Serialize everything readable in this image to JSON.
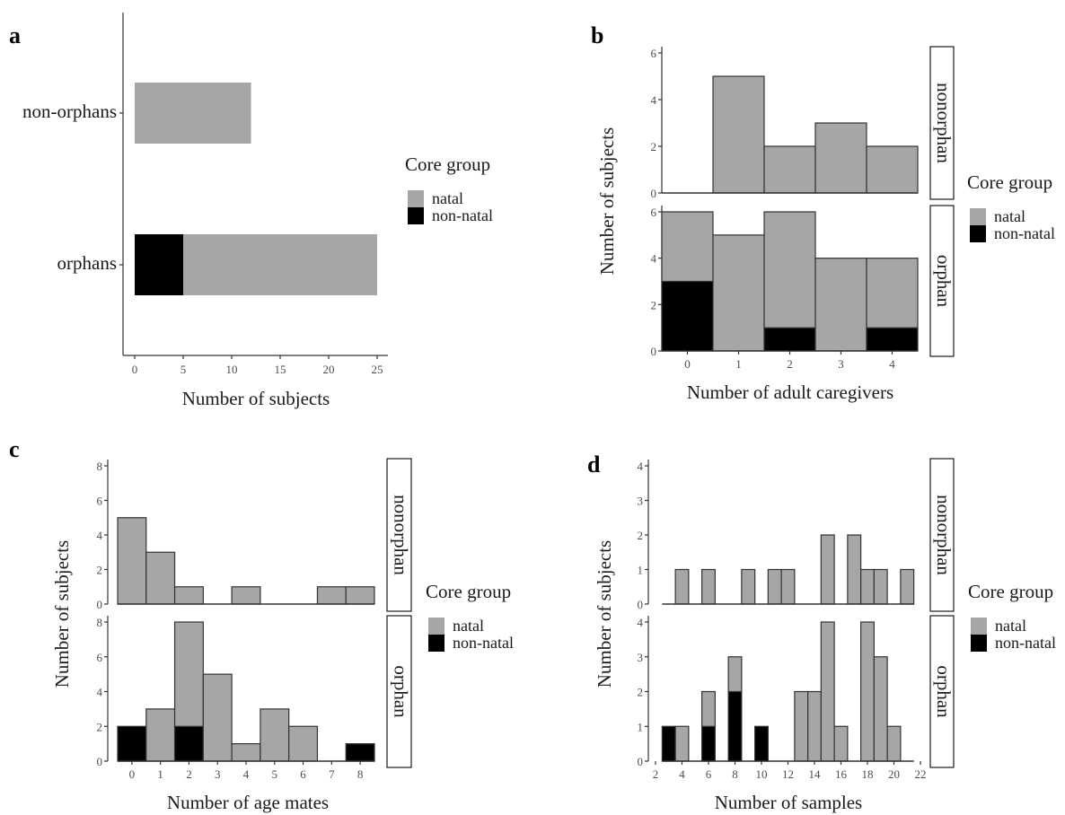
{
  "chart_data": [
    {
      "panel_label": "a",
      "type": "bar",
      "orientation": "horizontal",
      "stacked": true,
      "categories": [
        "non-orphans",
        "orphans"
      ],
      "series": [
        {
          "name": "natal",
          "color": "#a6a6a6",
          "values": [
            12,
            20
          ]
        },
        {
          "name": "non-natal",
          "color": "#000000",
          "values": [
            0,
            5
          ]
        }
      ],
      "xlabel": "Number of subjects",
      "xlim": [
        0,
        25
      ],
      "xticks": [
        "0",
        "5",
        "10",
        "15",
        "20",
        "25"
      ],
      "legend": {
        "title": "Core group",
        "entries": [
          "natal",
          "non-natal"
        ],
        "position": "right"
      },
      "grid": false
    },
    {
      "panel_label": "b",
      "type": "bar",
      "stacked": true,
      "facets": [
        "nonorphan",
        "orphan"
      ],
      "x": [
        0,
        1,
        2,
        3,
        4
      ],
      "bin_width": 1,
      "panels": [
        {
          "facet": "nonorphan",
          "natal": [
            0,
            5,
            2,
            3,
            2
          ],
          "non_natal": [
            0,
            0,
            0,
            0,
            0
          ]
        },
        {
          "facet": "orphan",
          "natal": [
            3,
            5,
            5,
            4,
            3
          ],
          "non_natal": [
            3,
            0,
            1,
            0,
            1
          ]
        }
      ],
      "xlabel": "Number of adult caregivers",
      "ylabel": "Number of subjects",
      "ylim": [
        0,
        6
      ],
      "yticks": [
        0,
        2,
        4,
        6
      ],
      "xticks": [
        "0",
        "1",
        "2",
        "3",
        "4"
      ],
      "legend": {
        "title": "Core group",
        "entries": [
          "natal",
          "non-natal"
        ],
        "position": "right"
      },
      "grid": false
    },
    {
      "panel_label": "c",
      "type": "bar",
      "stacked": true,
      "facets": [
        "nonorphan",
        "orphan"
      ],
      "x": [
        0,
        1,
        2,
        3,
        4,
        5,
        6,
        7,
        8
      ],
      "bin_width": 1,
      "panels": [
        {
          "facet": "nonorphan",
          "natal": [
            5,
            3,
            1,
            0,
            1,
            0,
            0,
            1,
            1
          ],
          "non_natal": [
            0,
            0,
            0,
            0,
            0,
            0,
            0,
            0,
            0
          ]
        },
        {
          "facet": "orphan",
          "natal": [
            0,
            3,
            6,
            5,
            1,
            3,
            2,
            0,
            0
          ],
          "non_natal": [
            2,
            0,
            2,
            0,
            0,
            0,
            0,
            0,
            1
          ]
        }
      ],
      "xlabel": "Number of age mates",
      "ylabel": "Number of subjects",
      "ylim": [
        0,
        8
      ],
      "yticks": [
        0,
        2,
        4,
        6,
        8
      ],
      "xticks": [
        "0",
        "1",
        "2",
        "3",
        "4",
        "5",
        "6",
        "7",
        "8"
      ],
      "legend": {
        "title": "Core group",
        "entries": [
          "natal",
          "non-natal"
        ],
        "position": "right"
      },
      "grid": false
    },
    {
      "panel_label": "d",
      "type": "bar",
      "stacked": true,
      "facets": [
        "nonorphan",
        "orphan"
      ],
      "x": [
        3,
        4,
        5,
        6,
        7,
        8,
        9,
        10,
        11,
        12,
        13,
        14,
        15,
        16,
        17,
        18,
        19,
        20,
        21
      ],
      "bin_width": 1,
      "panels": [
        {
          "facet": "nonorphan",
          "natal": [
            0,
            1,
            0,
            1,
            0,
            0,
            1,
            0,
            1,
            1,
            0,
            0,
            2,
            0,
            2,
            1,
            1,
            0,
            1
          ],
          "non_natal": [
            0,
            0,
            0,
            0,
            0,
            0,
            0,
            0,
            0,
            0,
            0,
            0,
            0,
            0,
            0,
            0,
            0,
            0,
            0
          ]
        },
        {
          "facet": "orphan",
          "natal": [
            0,
            1,
            0,
            1,
            0,
            1,
            0,
            0,
            0,
            0,
            2,
            2,
            4,
            1,
            0,
            4,
            3,
            1,
            0
          ],
          "non_natal": [
            1,
            0,
            0,
            1,
            0,
            2,
            0,
            1,
            0,
            0,
            0,
            0,
            0,
            0,
            0,
            0,
            0,
            0,
            0
          ]
        }
      ],
      "xlabel": "Number of samples",
      "ylabel": "Number of subjects",
      "ylim": [
        0,
        4
      ],
      "yticks": [
        0,
        1,
        2,
        3,
        4
      ],
      "xticks": [
        "2",
        "4",
        "6",
        "8",
        "10",
        "12",
        "14",
        "16",
        "18",
        "20",
        "22"
      ],
      "legend": {
        "title": "Core group",
        "entries": [
          "natal",
          "non-natal"
        ],
        "position": "right"
      },
      "grid": false
    }
  ]
}
